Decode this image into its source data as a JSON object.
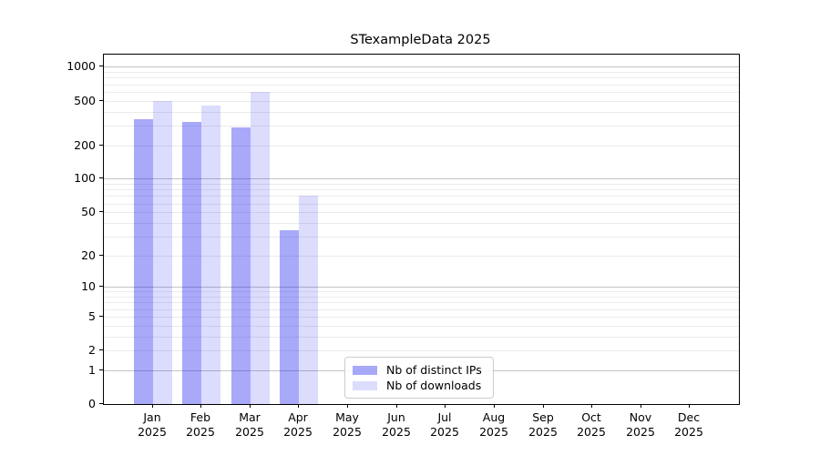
{
  "figure": {
    "title": "STexampleData 2025"
  },
  "chart_data": {
    "type": "bar",
    "title": "STexampleData 2025",
    "categories": [
      "Jan",
      "Feb",
      "Mar",
      "Apr",
      "May",
      "Jun",
      "Jul",
      "Aug",
      "Sep",
      "Oct",
      "Nov",
      "Dec"
    ],
    "year_label": "2025",
    "series": [
      {
        "name": "Nb of distinct IPs",
        "color": "rgba(10,10,240,0.35)",
        "values": [
          340,
          320,
          290,
          34,
          0,
          0,
          0,
          0,
          0,
          0,
          0,
          0
        ]
      },
      {
        "name": "Nb of downloads",
        "color": "rgba(10,10,240,0.14)",
        "values": [
          500,
          450,
          600,
          70,
          0,
          0,
          0,
          0,
          0,
          0,
          0,
          0
        ]
      }
    ],
    "yscale": "log1p",
    "ylim": [
      0,
      1285
    ],
    "yticks": [
      0,
      1,
      2,
      5,
      10,
      20,
      50,
      100,
      200,
      500,
      1000
    ],
    "grid": "both",
    "legend": {
      "position": "lower center",
      "items": [
        "Nb of distinct IPs",
        "Nb of downloads"
      ]
    },
    "colors": {
      "grid_major": "#c4c4c4",
      "grid_minor": "#ebebeb",
      "spine": "#000000",
      "background": "#ffffff"
    }
  }
}
